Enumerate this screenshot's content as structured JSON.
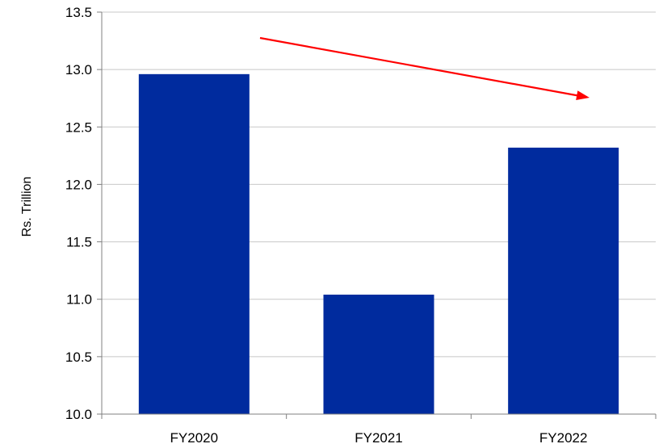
{
  "chart_data": {
    "type": "bar",
    "title": "",
    "xlabel": "",
    "ylabel": "Rs. Trillion",
    "categories": [
      "FY2020",
      "FY2021",
      "FY2022"
    ],
    "values": [
      12.96,
      11.04,
      12.32
    ],
    "ylim": [
      10.0,
      13.5
    ],
    "yticks": [
      "10.0",
      "10.5",
      "11.0",
      "11.5",
      "12.0",
      "12.5",
      "13.0",
      "13.5"
    ],
    "grid": "horizontal",
    "bar_color": "#002B9E",
    "grid_color": "#C8C8C8",
    "annotation": {
      "kind": "trend-arrow",
      "color": "#FF0000"
    }
  }
}
